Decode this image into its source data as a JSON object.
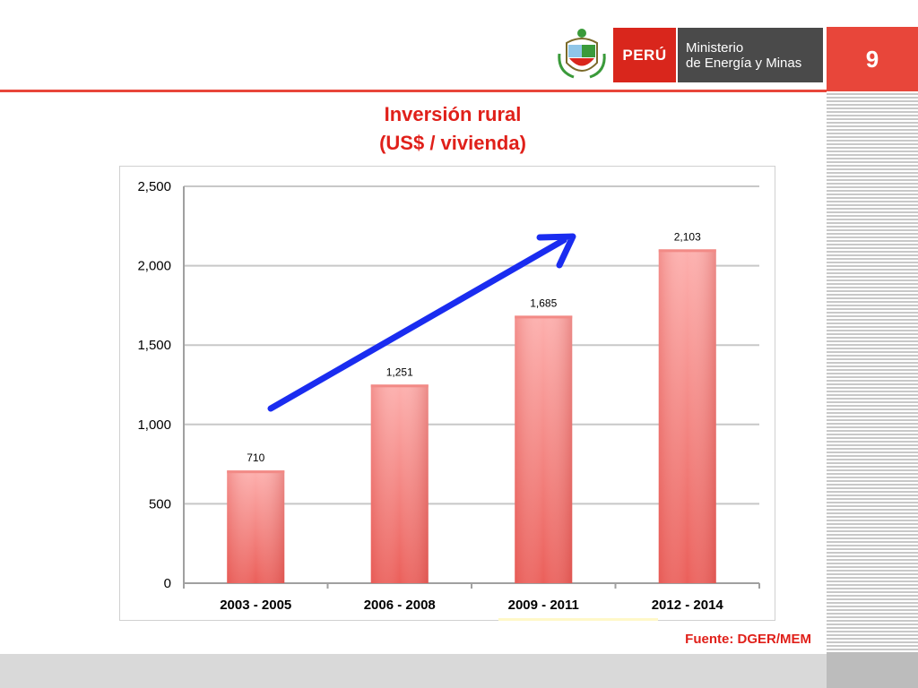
{
  "page": {
    "number": "9"
  },
  "logo": {
    "peru": "PERÚ",
    "ministry_line1": "Ministerio",
    "ministry_line2": "de Energía y Minas"
  },
  "title": {
    "line1": "Inversión rural",
    "line2": "(US$ / vivienda)"
  },
  "source": "Fuente: DGER/MEM",
  "colors": {
    "accent": "#e8463a",
    "bar": "#ef6a66",
    "arrow": "#1a2cf0",
    "title": "#e0201a"
  },
  "chart_data": {
    "type": "bar",
    "categories": [
      "2003 - 2005",
      "2006 - 2008",
      "2009 - 2011",
      "2012 - 2014"
    ],
    "values": [
      710,
      1251,
      1685,
      2103
    ],
    "value_labels": [
      "710",
      "1,251",
      "1,685",
      "2,103"
    ],
    "ylim": [
      0,
      2500
    ],
    "yticks": [
      0,
      500,
      1000,
      1500,
      2000,
      2500
    ],
    "ytick_labels": [
      "0",
      "500",
      "1,000",
      "1,500",
      "2,000",
      "2,500"
    ],
    "grid": true,
    "legend": "none",
    "title": "Inversión rural (US$ / vivienda)",
    "annotation": "upward trend arrow"
  }
}
